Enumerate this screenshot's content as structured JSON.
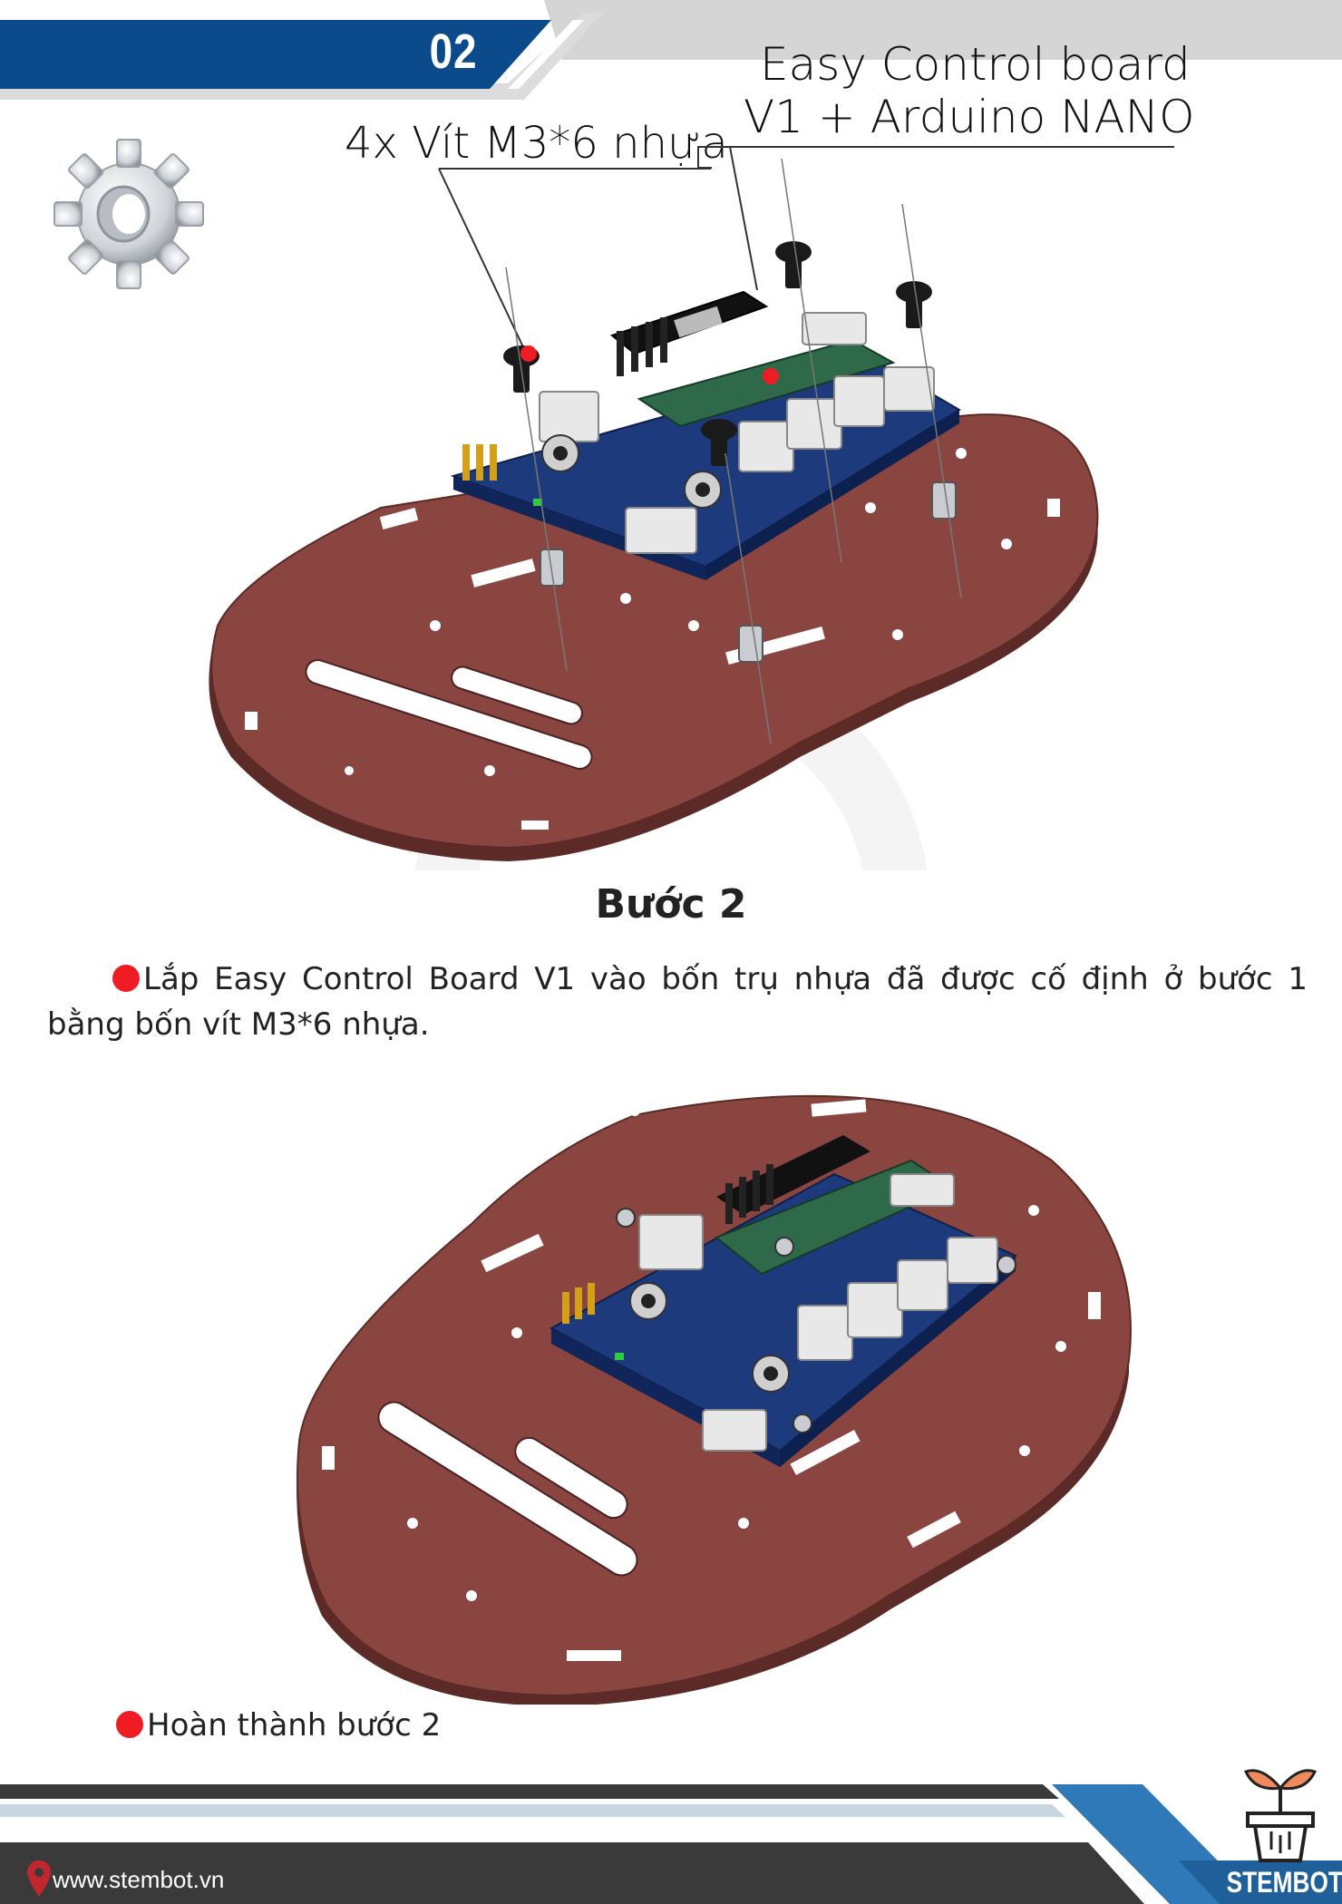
{
  "header": {
    "step_number": "02"
  },
  "labels": {
    "board_line1": "Easy Control board",
    "board_line2": "V1 + Arduino NANO",
    "screws": "4x Vít M3*6 nhựa"
  },
  "content": {
    "step_title": "Bước 2",
    "instruction": "Lắp Easy Control Board V1 vào bốn trụ nhựa đã được cố định ở bước 1 bằng bốn vít M3*6 nhựa.",
    "completion": "Hoàn thành bước 2"
  },
  "footer": {
    "website": "www.stembot.vn",
    "brand": "STEMBOT"
  },
  "colors": {
    "header_blue": "#0b4a8b",
    "chassis": "#7a3b35",
    "pcb": "#1c3a7c",
    "bullet": "#ef1c24",
    "footer_dark": "#3a3a3a",
    "footer_blue": "#2f79b8"
  }
}
